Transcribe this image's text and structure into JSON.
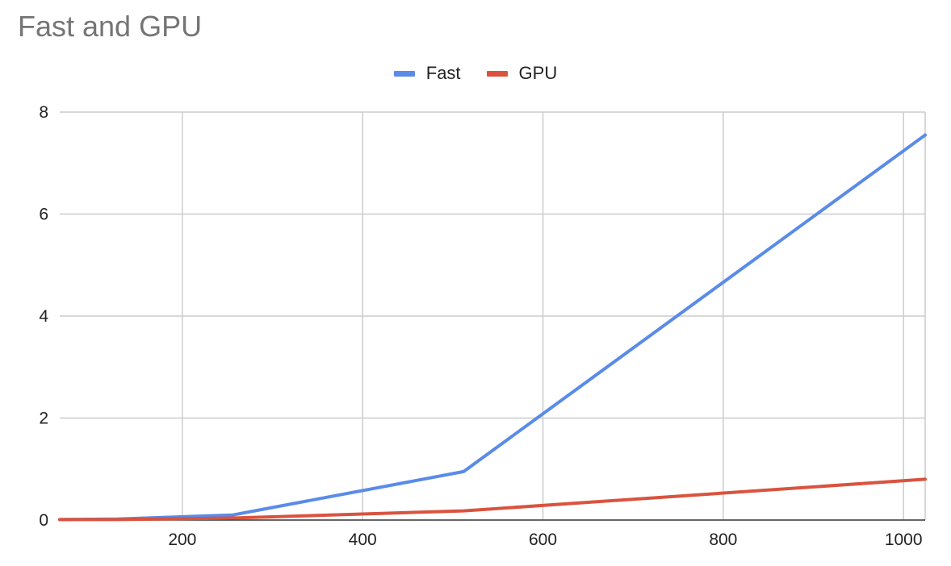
{
  "chart_data": {
    "type": "line",
    "title": "Fast and GPU",
    "xlabel": "",
    "ylabel": "",
    "xlim": [
      64,
      1024
    ],
    "ylim": [
      0,
      8
    ],
    "x_ticks": [
      200,
      400,
      600,
      800,
      1000
    ],
    "y_ticks": [
      0,
      2,
      4,
      6,
      8
    ],
    "grid": true,
    "legend_position": "top",
    "series": [
      {
        "name": "Fast",
        "color": "#5a8be8",
        "points": [
          [
            64,
            0.01
          ],
          [
            128,
            0.02
          ],
          [
            256,
            0.1
          ],
          [
            512,
            0.95
          ],
          [
            1024,
            7.55
          ]
        ]
      },
      {
        "name": "GPU",
        "color": "#d9533f",
        "points": [
          [
            64,
            0.01
          ],
          [
            128,
            0.01
          ],
          [
            256,
            0.04
          ],
          [
            512,
            0.18
          ],
          [
            1024,
            0.8
          ]
        ]
      }
    ]
  }
}
